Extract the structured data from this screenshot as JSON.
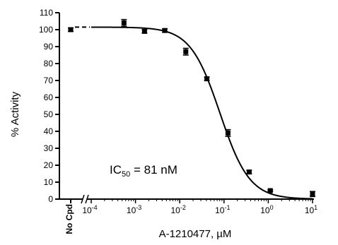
{
  "chart_data": {
    "type": "scatter",
    "title": "",
    "ylabel": "% Activity",
    "xlabel": "A-1210477, µM",
    "x_scale": "log",
    "xlim": [
      0.0001,
      10
    ],
    "ylim": [
      0,
      110
    ],
    "y_ticks": [
      0,
      10,
      20,
      30,
      40,
      50,
      60,
      70,
      80,
      90,
      100,
      110
    ],
    "x_ticks": [
      {
        "base": "10",
        "exp": "-4",
        "value": 0.0001
      },
      {
        "base": "10",
        "exp": "-3",
        "value": 0.001
      },
      {
        "base": "10",
        "exp": "-2",
        "value": 0.01
      },
      {
        "base": "10",
        "exp": "-1",
        "value": 0.1
      },
      {
        "base": "10",
        "exp": "0",
        "value": 1
      },
      {
        "base": "10",
        "exp": "1",
        "value": 10
      }
    ],
    "control": {
      "label": "No Cpd",
      "y": 100,
      "err": 1
    },
    "points": [
      {
        "x": 0.00055,
        "y": 104,
        "err": 2
      },
      {
        "x": 0.0016,
        "y": 99,
        "err": 1
      },
      {
        "x": 0.0046,
        "y": 99.5,
        "err": 1
      },
      {
        "x": 0.0137,
        "y": 87,
        "err": 2
      },
      {
        "x": 0.041,
        "y": 71,
        "err": 1
      },
      {
        "x": 0.123,
        "y": 39,
        "err": 2
      },
      {
        "x": 0.37,
        "y": 16,
        "err": 1
      },
      {
        "x": 1.11,
        "y": 5,
        "err": 0.5
      },
      {
        "x": 10,
        "y": 3,
        "err": 1.5
      }
    ],
    "fit": {
      "top": 101.5,
      "bottom": 0,
      "ic50": 0.081,
      "hill": 1.3
    },
    "annotation": {
      "prefix": "IC",
      "sub": "50",
      "suffix": " = 81 nM"
    }
  }
}
